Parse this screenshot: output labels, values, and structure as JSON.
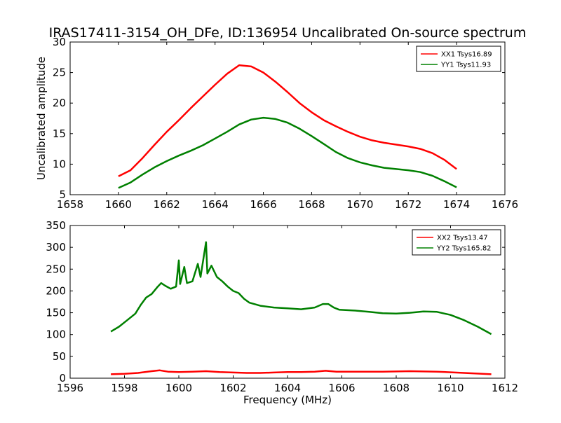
{
  "figure": {
    "title": "IRAS17411-3154_OH_DFe, ID:136954 Uncalibrated On-source spectrum"
  },
  "colors": {
    "red": "#ff0000",
    "green": "#008000"
  },
  "chart_data": [
    {
      "type": "line",
      "title": "",
      "xlabel": "",
      "ylabel": "Uncalibrated amplitude",
      "xlim": [
        1658,
        1676
      ],
      "ylim": [
        5,
        30
      ],
      "xticks": [
        1658,
        1660,
        1662,
        1664,
        1666,
        1668,
        1670,
        1672,
        1674,
        1676
      ],
      "yticks": [
        5,
        10,
        15,
        20,
        25,
        30
      ],
      "legend": {
        "placement": "top-right"
      },
      "grid": false,
      "series": [
        {
          "name": "XX1 Tsys16.89",
          "color": "#ff0000",
          "points": [
            [
              1660.0,
              8.0
            ],
            [
              1660.5,
              9.0
            ],
            [
              1661.0,
              11.0
            ],
            [
              1661.5,
              13.2
            ],
            [
              1662.0,
              15.3
            ],
            [
              1662.5,
              17.2
            ],
            [
              1663.0,
              19.2
            ],
            [
              1663.5,
              21.1
            ],
            [
              1664.0,
              23.0
            ],
            [
              1664.5,
              24.8
            ],
            [
              1665.0,
              26.2
            ],
            [
              1665.5,
              26.0
            ],
            [
              1666.0,
              25.0
            ],
            [
              1666.5,
              23.5
            ],
            [
              1667.0,
              21.8
            ],
            [
              1667.5,
              20.0
            ],
            [
              1668.0,
              18.5
            ],
            [
              1668.5,
              17.2
            ],
            [
              1669.0,
              16.2
            ],
            [
              1669.5,
              15.3
            ],
            [
              1670.0,
              14.5
            ],
            [
              1670.5,
              13.9
            ],
            [
              1671.0,
              13.5
            ],
            [
              1671.5,
              13.2
            ],
            [
              1672.0,
              12.9
            ],
            [
              1672.5,
              12.5
            ],
            [
              1673.0,
              11.8
            ],
            [
              1673.5,
              10.7
            ],
            [
              1674.0,
              9.2
            ]
          ]
        },
        {
          "name": "YY1 Tsys11.93",
          "color": "#008000",
          "points": [
            [
              1660.0,
              6.1
            ],
            [
              1660.5,
              7.0
            ],
            [
              1661.0,
              8.3
            ],
            [
              1661.5,
              9.5
            ],
            [
              1662.0,
              10.5
            ],
            [
              1662.5,
              11.4
            ],
            [
              1663.0,
              12.2
            ],
            [
              1663.5,
              13.1
            ],
            [
              1664.0,
              14.2
            ],
            [
              1664.5,
              15.3
            ],
            [
              1665.0,
              16.5
            ],
            [
              1665.5,
              17.3
            ],
            [
              1666.0,
              17.6
            ],
            [
              1666.5,
              17.4
            ],
            [
              1667.0,
              16.8
            ],
            [
              1667.5,
              15.8
            ],
            [
              1668.0,
              14.6
            ],
            [
              1668.5,
              13.3
            ],
            [
              1669.0,
              12.0
            ],
            [
              1669.5,
              11.0
            ],
            [
              1670.0,
              10.3
            ],
            [
              1670.5,
              9.8
            ],
            [
              1671.0,
              9.4
            ],
            [
              1671.5,
              9.2
            ],
            [
              1672.0,
              9.0
            ],
            [
              1672.5,
              8.7
            ],
            [
              1673.0,
              8.1
            ],
            [
              1673.5,
              7.2
            ],
            [
              1674.0,
              6.2
            ]
          ]
        }
      ]
    },
    {
      "type": "line",
      "title": "",
      "xlabel": "Frequency (MHz)",
      "ylabel": "",
      "xlim": [
        1596,
        1612
      ],
      "ylim": [
        0,
        350
      ],
      "xticks": [
        1596,
        1598,
        1600,
        1602,
        1604,
        1606,
        1608,
        1610,
        1612
      ],
      "yticks": [
        0,
        50,
        100,
        150,
        200,
        250,
        300,
        350
      ],
      "legend": {
        "placement": "top-right"
      },
      "grid": false,
      "series": [
        {
          "name": "XX2 Tsys13.47",
          "color": "#ff0000",
          "points": [
            [
              1597.5,
              9
            ],
            [
              1598.0,
              10
            ],
            [
              1598.5,
              12
            ],
            [
              1599.0,
              16
            ],
            [
              1599.3,
              18
            ],
            [
              1599.6,
              15
            ],
            [
              1600.0,
              14
            ],
            [
              1600.5,
              15
            ],
            [
              1601.0,
              16
            ],
            [
              1601.5,
              14
            ],
            [
              1602.0,
              13
            ],
            [
              1602.5,
              12
            ],
            [
              1603.0,
              12
            ],
            [
              1603.5,
              13
            ],
            [
              1604.0,
              14
            ],
            [
              1604.5,
              14
            ],
            [
              1605.0,
              15
            ],
            [
              1605.4,
              17
            ],
            [
              1605.8,
              15
            ],
            [
              1606.5,
              15
            ],
            [
              1607.5,
              15
            ],
            [
              1608.5,
              16
            ],
            [
              1609.5,
              15
            ],
            [
              1610.5,
              12
            ],
            [
              1611.5,
              9
            ]
          ]
        },
        {
          "name": "YY2 Tsys165.82",
          "color": "#008000",
          "points": [
            [
              1597.5,
              107
            ],
            [
              1597.8,
              118
            ],
            [
              1598.1,
              133
            ],
            [
              1598.4,
              148
            ],
            [
              1598.6,
              168
            ],
            [
              1598.8,
              185
            ],
            [
              1599.0,
              193
            ],
            [
              1599.2,
              208
            ],
            [
              1599.35,
              218
            ],
            [
              1599.5,
              212
            ],
            [
              1599.7,
              205
            ],
            [
              1599.9,
              210
            ],
            [
              1600.0,
              270
            ],
            [
              1600.05,
              216
            ],
            [
              1600.2,
              255
            ],
            [
              1600.3,
              218
            ],
            [
              1600.5,
              222
            ],
            [
              1600.7,
              262
            ],
            [
              1600.8,
              232
            ],
            [
              1601.0,
              312
            ],
            [
              1601.05,
              240
            ],
            [
              1601.2,
              258
            ],
            [
              1601.4,
              232
            ],
            [
              1601.6,
              222
            ],
            [
              1601.8,
              210
            ],
            [
              1602.0,
              200
            ],
            [
              1602.2,
              195
            ],
            [
              1602.4,
              182
            ],
            [
              1602.6,
              173
            ],
            [
              1603.0,
              166
            ],
            [
              1603.5,
              162
            ],
            [
              1604.0,
              160
            ],
            [
              1604.5,
              158
            ],
            [
              1605.0,
              162
            ],
            [
              1605.3,
              170
            ],
            [
              1605.5,
              170
            ],
            [
              1605.7,
              162
            ],
            [
              1605.9,
              157
            ],
            [
              1606.5,
              155
            ],
            [
              1607.0,
              152
            ],
            [
              1607.5,
              149
            ],
            [
              1608.0,
              148
            ],
            [
              1608.5,
              150
            ],
            [
              1609.0,
              153
            ],
            [
              1609.5,
              152
            ],
            [
              1610.0,
              145
            ],
            [
              1610.5,
              133
            ],
            [
              1611.0,
              118
            ],
            [
              1611.5,
              101
            ]
          ]
        }
      ]
    }
  ]
}
